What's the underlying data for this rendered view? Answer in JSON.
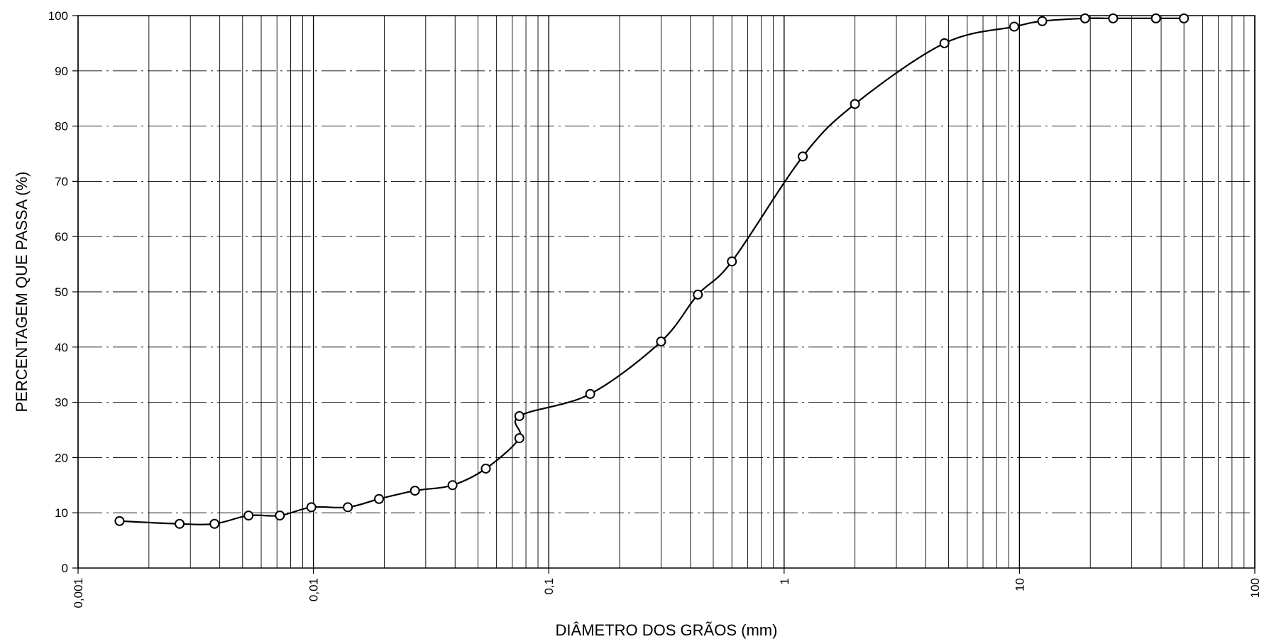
{
  "chart_data": {
    "type": "line",
    "title": "",
    "xlabel": "DIÂMETRO DOS GRÃOS (mm)",
    "ylabel": "PERCENTAGEM QUE PASSA (%)",
    "x_scale": "log",
    "xlim": [
      0.001,
      100
    ],
    "ylim": [
      0,
      100
    ],
    "grid": true,
    "x_tick_labels": [
      "0,001",
      "0,01",
      "0,1",
      "1",
      "10",
      "100"
    ],
    "y_tick_labels": [
      "0",
      "10",
      "20",
      "30",
      "40",
      "50",
      "60",
      "70",
      "80",
      "90",
      "100"
    ],
    "line_color": "#000000",
    "marker": "open-circle",
    "series": [
      {
        "x": [
          0.0015,
          0.0027,
          0.0038,
          0.0053,
          0.0072,
          0.0098,
          0.014,
          0.019,
          0.027,
          0.039,
          0.054,
          0.075,
          0.075,
          0.15,
          0.3,
          0.43,
          0.6,
          1.2,
          2.0,
          4.8,
          9.5,
          12.5,
          19,
          25,
          38,
          50
        ],
        "y": [
          8.5,
          8,
          8,
          9.5,
          9.5,
          11,
          11,
          12.5,
          14,
          15,
          18,
          23.5,
          27.5,
          31.5,
          41,
          49.5,
          55.5,
          74.5,
          84,
          95,
          98,
          99,
          99.5,
          99.5,
          99.5,
          99.5
        ]
      }
    ]
  }
}
